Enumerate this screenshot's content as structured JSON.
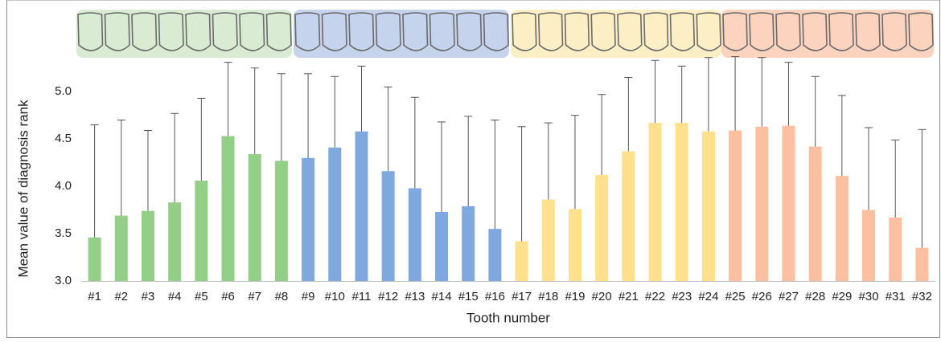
{
  "chart_data": {
    "type": "bar",
    "y_label": "Mean value of diagnosis rank",
    "x_label": "Tooth number",
    "categories": [
      "#1",
      "#2",
      "#3",
      "#4",
      "#5",
      "#6",
      "#7",
      "#8",
      "#9",
      "#10",
      "#11",
      "#12",
      "#13",
      "#14",
      "#15",
      "#16",
      "#17",
      "#18",
      "#19",
      "#20",
      "#21",
      "#22",
      "#23",
      "#24",
      "#25",
      "#26",
      "#27",
      "#28",
      "#29",
      "#30",
      "#31",
      "#32"
    ],
    "values": [
      3.46,
      3.69,
      3.74,
      3.83,
      4.06,
      4.53,
      4.34,
      4.27,
      4.3,
      4.41,
      4.58,
      4.16,
      3.98,
      3.73,
      3.79,
      3.55,
      3.42,
      3.86,
      3.76,
      4.12,
      4.37,
      4.67,
      4.67,
      4.58,
      4.59,
      4.63,
      4.64,
      4.42,
      4.11,
      3.75,
      3.67,
      3.35
    ],
    "errors": [
      1.19,
      1.01,
      0.85,
      0.94,
      0.87,
      0.78,
      0.91,
      0.92,
      0.89,
      0.75,
      0.69,
      0.89,
      0.96,
      0.95,
      0.95,
      1.15,
      1.21,
      0.81,
      0.99,
      0.85,
      0.78,
      0.66,
      0.6,
      0.78,
      0.78,
      0.73,
      0.67,
      0.74,
      0.85,
      0.87,
      0.82,
      1.25
    ],
    "colors": [
      "#93cf86",
      "#93cf86",
      "#93cf86",
      "#93cf86",
      "#93cf86",
      "#93cf86",
      "#93cf86",
      "#93cf86",
      "#7fa9de",
      "#7fa9de",
      "#7fa9de",
      "#7fa9de",
      "#7fa9de",
      "#7fa9de",
      "#7fa9de",
      "#7fa9de",
      "#ffe08c",
      "#ffe08c",
      "#ffe08c",
      "#ffe08c",
      "#ffe08c",
      "#ffe08c",
      "#ffe08c",
      "#ffe08c",
      "#fcbf9f",
      "#fcbf9f",
      "#fcbf9f",
      "#fcbf9f",
      "#fcbf9f",
      "#fcbf9f",
      "#fcbf9f",
      "#fcbf9f"
    ],
    "ylim": [
      3.0,
      5.4
    ],
    "yticks": [
      {
        "value": 3,
        "label": "3.0"
      },
      3.5,
      {
        "value": 4,
        "label": "4.0"
      },
      4.5,
      {
        "value": 5,
        "label": "5.0"
      }
    ]
  }
}
